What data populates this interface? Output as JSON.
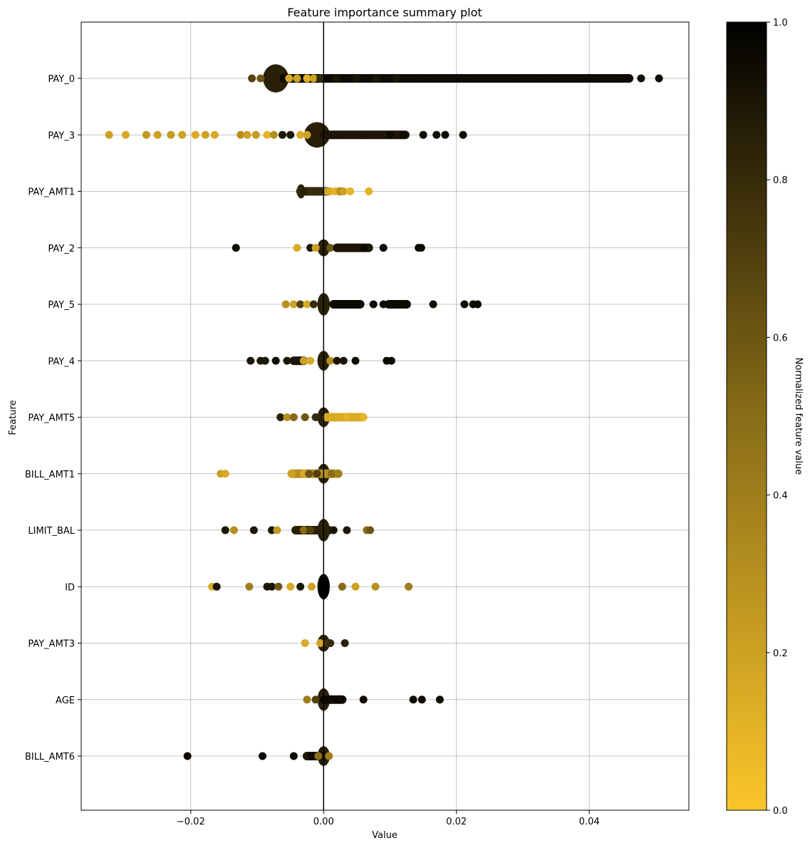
{
  "chart_data": {
    "type": "scatter",
    "title": "Feature importance summary plot",
    "xlabel": "Value",
    "ylabel": "Feature",
    "xlim": [
      -0.0365,
      0.055
    ],
    "x_ticks": [
      -0.02,
      0.0,
      0.02,
      0.04
    ],
    "x_tick_labels": [
      "−0.02",
      "0.00",
      "0.02",
      "0.04"
    ],
    "grid": true,
    "zero_line": 0.0,
    "colorbar": {
      "label": "Normalized feature value",
      "range": [
        0.0,
        1.0
      ],
      "ticks": [
        0.0,
        0.2,
        0.4,
        0.6,
        0.8,
        1.0
      ],
      "tick_labels": [
        "0.0",
        "0.2",
        "0.4",
        "0.6",
        "0.8",
        "1.0"
      ],
      "color_low": "#fbc52a",
      "color_mid": "#886c18",
      "color_high": "#000000"
    },
    "features": [
      {
        "name": "PAY_0",
        "core": {
          "min": -0.0087,
          "max": -0.0057,
          "width": 0.5
        },
        "points": [
          [
            -0.0108,
            0.7
          ],
          [
            -0.0095,
            0.6
          ],
          [
            -0.0052,
            0.15
          ],
          [
            -0.004,
            0.2
          ],
          [
            -0.0025,
            0.1
          ],
          [
            -0.0015,
            0.2
          ],
          [
            -0.0005,
            0.8
          ],
          [
            0.002,
            0.9
          ],
          [
            0.005,
            0.9
          ],
          [
            0.008,
            0.9
          ],
          [
            0.011,
            0.9
          ],
          [
            0.014,
            0.95
          ],
          [
            0.017,
            0.95
          ],
          [
            0.02,
            0.95
          ],
          [
            0.023,
            0.95
          ],
          [
            0.026,
            0.95
          ],
          [
            0.028,
            0.95
          ],
          [
            0.031,
            0.95
          ],
          [
            0.034,
            0.95
          ],
          [
            0.037,
            0.95
          ],
          [
            0.04,
            0.95
          ],
          [
            0.043,
            0.95
          ],
          [
            0.046,
            0.95
          ],
          [
            0.0478,
            0.95
          ],
          [
            0.0505,
            0.95
          ]
        ],
        "segments": [
          [
            -0.006,
            0.046,
            0.95
          ]
        ]
      },
      {
        "name": "PAY_3",
        "core": {
          "min": -0.0025,
          "max": 0.0005,
          "width": 0.45
        },
        "points": [
          [
            -0.0323,
            0.2
          ],
          [
            -0.0298,
            0.15
          ],
          [
            -0.0267,
            0.25
          ],
          [
            -0.025,
            0.2
          ],
          [
            -0.023,
            0.25
          ],
          [
            -0.0213,
            0.2
          ],
          [
            -0.0193,
            0.15
          ],
          [
            -0.0178,
            0.2
          ],
          [
            -0.0164,
            0.15
          ],
          [
            -0.0125,
            0.3
          ],
          [
            -0.0115,
            0.2
          ],
          [
            -0.0102,
            0.25
          ],
          [
            -0.0085,
            0.1
          ],
          [
            -0.0075,
            0.3
          ],
          [
            -0.0062,
            0.9
          ],
          [
            -0.005,
            0.9
          ],
          [
            -0.0035,
            0.15
          ],
          [
            -0.0025,
            0.2
          ],
          [
            0.002,
            0.9
          ],
          [
            0.006,
            0.9
          ],
          [
            0.01,
            0.95
          ],
          [
            0.012,
            0.95
          ],
          [
            0.015,
            0.95
          ],
          [
            0.017,
            0.95
          ],
          [
            0.0183,
            0.95
          ],
          [
            0.021,
            0.95
          ]
        ],
        "segments": [
          [
            0.0,
            0.0123,
            0.9
          ]
        ]
      },
      {
        "name": "PAY_AMT1",
        "core": {
          "min": -0.0035,
          "max": -0.0033,
          "width": 0.25
        },
        "points": [
          [
            -0.003,
            0.85
          ],
          [
            -0.002,
            0.8
          ],
          [
            -0.001,
            0.8
          ],
          [
            0.0005,
            0.2
          ],
          [
            0.001,
            0.15
          ],
          [
            0.0018,
            0.1
          ],
          [
            0.0025,
            0.3
          ],
          [
            0.003,
            0.2
          ],
          [
            0.004,
            0.1
          ],
          [
            0.0068,
            0.1
          ]
        ],
        "segments": [
          [
            -0.0035,
            0.0005,
            0.8
          ],
          [
            0.0025,
            0.0025,
            0.3
          ]
        ]
      },
      {
        "name": "PAY_2",
        "core": {
          "min": -0.0005,
          "max": 0.0005,
          "width": 0.3
        },
        "points": [
          [
            -0.0132,
            0.95
          ],
          [
            -0.004,
            0.15
          ],
          [
            -0.002,
            0.9
          ],
          [
            -0.0012,
            0.2
          ],
          [
            0.001,
            0.6
          ],
          [
            0.002,
            0.9
          ],
          [
            0.003,
            0.9
          ],
          [
            0.004,
            0.9
          ],
          [
            0.005,
            0.9
          ],
          [
            0.006,
            0.95
          ],
          [
            0.009,
            0.95
          ],
          [
            0.0143,
            0.95
          ],
          [
            0.0147,
            0.95
          ]
        ],
        "segments": [
          [
            0.002,
            0.0068,
            0.9
          ]
        ]
      },
      {
        "name": "PAY_5",
        "core": {
          "min": -0.0005,
          "max": 0.0005,
          "width": 0.4
        },
        "points": [
          [
            -0.0057,
            0.3
          ],
          [
            -0.0045,
            0.2
          ],
          [
            -0.0035,
            0.7
          ],
          [
            -0.0025,
            0.15
          ],
          [
            -0.0015,
            0.8
          ],
          [
            0.002,
            0.95
          ],
          [
            0.004,
            0.95
          ],
          [
            0.0075,
            0.95
          ],
          [
            0.009,
            0.95
          ],
          [
            0.0105,
            0.95
          ],
          [
            0.0115,
            0.95
          ],
          [
            0.0125,
            0.95
          ],
          [
            0.0165,
            0.95
          ],
          [
            0.0212,
            0.95
          ],
          [
            0.0225,
            0.95
          ],
          [
            0.0232,
            0.95
          ]
        ],
        "segments": [
          [
            0.0015,
            0.0055,
            0.95
          ],
          [
            0.0098,
            0.0125,
            0.95
          ]
        ]
      },
      {
        "name": "PAY_4",
        "core": {
          "min": -0.0005,
          "max": 0.0005,
          "width": 0.35
        },
        "points": [
          [
            -0.011,
            0.9
          ],
          [
            -0.0095,
            0.9
          ],
          [
            -0.0088,
            0.9
          ],
          [
            -0.0072,
            0.95
          ],
          [
            -0.0055,
            0.9
          ],
          [
            -0.004,
            0.9
          ],
          [
            -0.003,
            0.2
          ],
          [
            -0.002,
            0.15
          ],
          [
            0.001,
            0.3
          ],
          [
            0.002,
            0.9
          ],
          [
            0.003,
            0.9
          ],
          [
            0.0048,
            0.95
          ],
          [
            0.0095,
            0.95
          ],
          [
            0.0102,
            0.95
          ]
        ],
        "segments": [
          [
            -0.0045,
            -0.003,
            0.9
          ]
        ]
      },
      {
        "name": "PAY_AMT5",
        "core": {
          "min": -0.0005,
          "max": 0.0005,
          "width": 0.35
        },
        "points": [
          [
            -0.0065,
            0.85
          ],
          [
            -0.0055,
            0.3
          ],
          [
            -0.0045,
            0.5
          ],
          [
            -0.0028,
            0.6
          ],
          [
            -0.0012,
            0.8
          ],
          [
            0.001,
            0.15
          ],
          [
            0.002,
            0.15
          ],
          [
            0.0035,
            0.1
          ],
          [
            0.0045,
            0.15
          ],
          [
            0.0055,
            0.15
          ],
          [
            0.006,
            0.1
          ]
        ],
        "segments": [
          [
            0.0005,
            0.0058,
            0.15
          ]
        ]
      },
      {
        "name": "BILL_AMT1",
        "core": {
          "min": -0.0005,
          "max": 0.0005,
          "width": 0.35
        },
        "points": [
          [
            -0.0155,
            0.2
          ],
          [
            -0.0148,
            0.15
          ],
          [
            -0.0048,
            0.2
          ],
          [
            -0.003,
            0.15
          ],
          [
            -0.0022,
            0.6
          ],
          [
            -0.001,
            0.7
          ],
          [
            0.0012,
            0.5
          ],
          [
            0.0022,
            0.4
          ]
        ],
        "segments": [
          [
            -0.0048,
            0.0022,
            0.3
          ]
        ]
      },
      {
        "name": "LIMIT_BAL",
        "core": {
          "min": -0.0005,
          "max": 0.0005,
          "width": 0.4
        },
        "points": [
          [
            -0.0148,
            0.9
          ],
          [
            -0.0135,
            0.3
          ],
          [
            -0.0105,
            0.9
          ],
          [
            -0.0078,
            0.9
          ],
          [
            -0.007,
            0.25
          ],
          [
            -0.004,
            0.85
          ],
          [
            -0.003,
            0.5
          ],
          [
            -0.002,
            0.7
          ],
          [
            0.0015,
            0.9
          ],
          [
            0.0035,
            0.9
          ],
          [
            0.0065,
            0.5
          ],
          [
            0.007,
            0.6
          ]
        ],
        "segments": [
          [
            -0.0042,
            0.0008,
            0.85
          ]
        ]
      },
      {
        "name": "ID",
        "core": {
          "min": -0.0005,
          "max": 0.0005,
          "width": 0.45
        },
        "core_value": 1.0,
        "points": [
          [
            -0.0168,
            0.15
          ],
          [
            -0.0161,
            0.9
          ],
          [
            -0.0112,
            0.4
          ],
          [
            -0.0085,
            0.9
          ],
          [
            -0.0078,
            0.9
          ],
          [
            -0.0068,
            0.6
          ],
          [
            -0.005,
            0.15
          ],
          [
            -0.0035,
            0.9
          ],
          [
            -0.0018,
            0.2
          ],
          [
            0.0028,
            0.5
          ],
          [
            0.0048,
            0.2
          ],
          [
            0.0078,
            0.3
          ],
          [
            0.0128,
            0.4
          ]
        ],
        "segments": []
      },
      {
        "name": "PAY_AMT3",
        "core": {
          "min": -0.0005,
          "max": 0.0005,
          "width": 0.3
        },
        "points": [
          [
            -0.0028,
            0.15
          ],
          [
            -0.0005,
            0.2
          ],
          [
            0.0008,
            0.7
          ],
          [
            0.001,
            0.8
          ],
          [
            0.0032,
            0.85
          ]
        ],
        "segments": []
      },
      {
        "name": "AGE",
        "core": {
          "min": -0.0005,
          "max": 0.0005,
          "width": 0.4
        },
        "points": [
          [
            -0.0025,
            0.4
          ],
          [
            -0.0012,
            0.7
          ],
          [
            0.0012,
            0.95
          ],
          [
            0.0025,
            0.95
          ],
          [
            0.006,
            0.95
          ],
          [
            0.0135,
            0.95
          ],
          [
            0.0148,
            0.95
          ],
          [
            0.0175,
            0.95
          ]
        ],
        "segments": [
          [
            0.0,
            0.0028,
            0.95
          ]
        ]
      },
      {
        "name": "BILL_AMT6",
        "core": {
          "min": -0.0005,
          "max": 0.0005,
          "width": 0.35
        },
        "points": [
          [
            -0.0205,
            0.95
          ],
          [
            -0.0092,
            0.95
          ],
          [
            -0.0045,
            0.95
          ],
          [
            -0.0025,
            0.9
          ],
          [
            -0.0018,
            0.95
          ],
          [
            -0.0008,
            0.5
          ],
          [
            0.0008,
            0.4
          ]
        ],
        "segments": [
          [
            -0.0025,
            0.0,
            0.9
          ]
        ]
      }
    ]
  }
}
